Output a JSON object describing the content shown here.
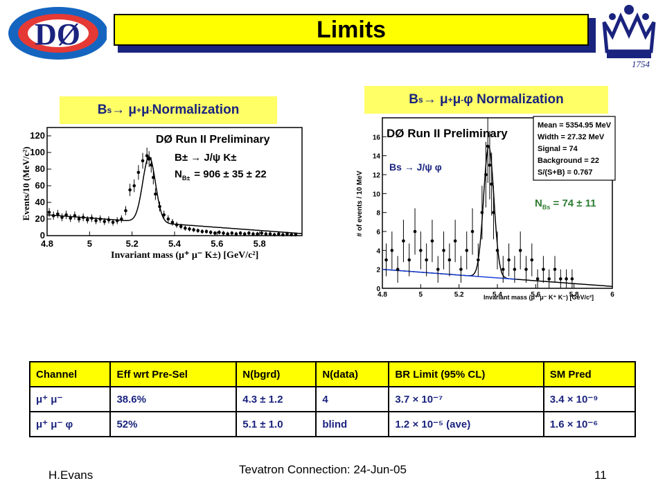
{
  "slide": {
    "title": "Limits",
    "footer_author": "H.Evans",
    "footer_center": "Tevatron Connection: 24-Jun-05",
    "footer_page": "11"
  },
  "logos": {
    "left_text": "DØ",
    "right_text": "1754"
  },
  "left_panel": {
    "heading_main": "B",
    "heading_sub": "s",
    "heading_rest": " → μ",
    "heading_sup1": "+",
    "heading_mid": " μ",
    "heading_sup2": "-",
    "heading_tail": " Normalization",
    "plot_title": "DØ  Run II Preliminary",
    "decay_label": "B± → J/ψ K±",
    "n_label": "N",
    "n_label_sub": "B±",
    "n_value": "= 906 ± 35 ± 22",
    "ylabel": "Events/10 (MeV/c²)",
    "xlabel": "Invariant mass (μ⁺ μ⁻ K±)   [GeV/c²]"
  },
  "right_panel": {
    "heading_main": "B",
    "heading_sub": "s",
    "heading_rest": " → μ",
    "heading_sup1": "+",
    "heading_mid": " μ",
    "heading_sup2": "-",
    "heading_tail": " φ Normalization",
    "plot_title": "DØ Run II Preliminary",
    "decay_label": "Bs → J/ψ φ",
    "n_label": "N",
    "n_label_sub": "Bs",
    "n_value": " = 74 ± 11",
    "ylabel": "# of events / 10 MeV",
    "xlabel": "Invariant mass (μ⁺ μ⁻ K⁺ K⁻)   [GeV/c²]",
    "stats": [
      "Mean = 5354.95 MeV",
      "Width = 27.32 MeV",
      "Signal  =  74",
      "Background =  22",
      "S/(S+B) = 0.767"
    ]
  },
  "table": {
    "headers": [
      "Channel",
      "Eff wrt Pre-Sel",
      "N(bgrd)",
      "N(data)",
      "BR Limit (95% CL)",
      "SM Pred"
    ],
    "rows": [
      [
        "μ⁺ μ⁻",
        "38.6%",
        "4.3 ± 1.2",
        "4",
        "3.7 × 10⁻⁷",
        "3.4 × 10⁻⁹"
      ],
      [
        "μ⁺ μ⁻ φ",
        "52%",
        "5.1 ± 1.0",
        "blind",
        "1.2 × 10⁻⁵ (ave)",
        "1.6 × 10⁻⁶"
      ]
    ]
  },
  "colors": {
    "banner": "#ffff00",
    "heading_box": "#ffff66",
    "heading_text": "#1a237e",
    "n_bs_text": "#2e7d32",
    "bs_label_text": "#1a237e",
    "background_line": "#1a3fd6"
  },
  "chart_data": [
    {
      "type": "scatter",
      "title": "DØ  Run II Preliminary",
      "xlabel": "Invariant mass (μ⁺ μ⁻ K±)   [GeV/c²]",
      "ylabel": "Events/10 (MeV/c²)",
      "xlim": [
        4.8,
        6.0
      ],
      "ylim": [
        0,
        130
      ],
      "x_ticks": [
        4.8,
        5,
        5.2,
        5.4,
        5.6,
        5.8
      ],
      "y_ticks": [
        0,
        20,
        40,
        60,
        80,
        100,
        120
      ],
      "points": [
        [
          4.81,
          28
        ],
        [
          4.83,
          24
        ],
        [
          4.85,
          26
        ],
        [
          4.87,
          22
        ],
        [
          4.89,
          25
        ],
        [
          4.91,
          21
        ],
        [
          4.93,
          24
        ],
        [
          4.95,
          20
        ],
        [
          4.97,
          22
        ],
        [
          4.99,
          19
        ],
        [
          5.01,
          21
        ],
        [
          5.03,
          18
        ],
        [
          5.05,
          20
        ],
        [
          5.07,
          17
        ],
        [
          5.09,
          19
        ],
        [
          5.11,
          16
        ],
        [
          5.13,
          18
        ],
        [
          5.15,
          20
        ],
        [
          5.17,
          30
        ],
        [
          5.19,
          55
        ],
        [
          5.21,
          60
        ],
        [
          5.23,
          76
        ],
        [
          5.25,
          90
        ],
        [
          5.27,
          96
        ],
        [
          5.28,
          92
        ],
        [
          5.29,
          85
        ],
        [
          5.3,
          70
        ],
        [
          5.31,
          50
        ],
        [
          5.33,
          35
        ],
        [
          5.35,
          25
        ],
        [
          5.37,
          20
        ],
        [
          5.39,
          16
        ],
        [
          5.41,
          13
        ],
        [
          5.43,
          11
        ],
        [
          5.45,
          9
        ],
        [
          5.47,
          8
        ],
        [
          5.49,
          7
        ],
        [
          5.51,
          6
        ],
        [
          5.53,
          5
        ],
        [
          5.55,
          5
        ],
        [
          5.57,
          4
        ],
        [
          5.59,
          3
        ],
        [
          5.61,
          4
        ],
        [
          5.63,
          3
        ],
        [
          5.65,
          2
        ],
        [
          5.67,
          3
        ],
        [
          5.69,
          2
        ],
        [
          5.71,
          3
        ],
        [
          5.73,
          2
        ],
        [
          5.75,
          3
        ],
        [
          5.77,
          2
        ],
        [
          5.79,
          2
        ],
        [
          5.81,
          3
        ],
        [
          5.83,
          2
        ],
        [
          5.85,
          2
        ],
        [
          5.87,
          1
        ],
        [
          5.89,
          2
        ],
        [
          5.91,
          1
        ],
        [
          5.93,
          2
        ],
        [
          5.95,
          1
        ],
        [
          5.97,
          1
        ]
      ],
      "fit": {
        "background_at_4_8": 25,
        "peak_x": 5.28,
        "peak_y": 95,
        "width": 0.03
      }
    },
    {
      "type": "scatter",
      "title": "DØ Run II Preliminary",
      "xlabel": "Invariant mass (μ⁺ μ⁻ K⁺ K⁻)   [GeV/c²]",
      "ylabel": "# of events / 10 MeV",
      "xlim": [
        4.8,
        6.0
      ],
      "ylim": [
        0,
        18
      ],
      "x_ticks": [
        4.8,
        5,
        5.2,
        5.4,
        5.6,
        5.8,
        6
      ],
      "y_ticks": [
        0,
        2,
        4,
        6,
        8,
        10,
        12,
        14,
        16
      ],
      "points": [
        [
          4.82,
          3
        ],
        [
          4.85,
          4
        ],
        [
          4.88,
          2
        ],
        [
          4.91,
          5
        ],
        [
          4.94,
          3
        ],
        [
          4.97,
          6
        ],
        [
          5.0,
          4
        ],
        [
          5.03,
          3
        ],
        [
          5.06,
          5
        ],
        [
          5.09,
          2
        ],
        [
          5.12,
          4
        ],
        [
          5.15,
          3
        ],
        [
          5.18,
          5
        ],
        [
          5.21,
          2
        ],
        [
          5.24,
          4
        ],
        [
          5.27,
          6
        ],
        [
          5.3,
          3
        ],
        [
          5.32,
          8
        ],
        [
          5.34,
          12
        ],
        [
          5.35,
          15
        ],
        [
          5.36,
          13
        ],
        [
          5.37,
          11
        ],
        [
          5.38,
          8
        ],
        [
          5.4,
          4
        ],
        [
          5.43,
          2
        ],
        [
          5.46,
          3
        ],
        [
          5.49,
          2
        ],
        [
          5.52,
          4
        ],
        [
          5.55,
          2
        ],
        [
          5.58,
          3
        ],
        [
          5.61,
          1
        ],
        [
          5.64,
          2
        ],
        [
          5.67,
          1
        ],
        [
          5.7,
          2
        ],
        [
          5.73,
          1
        ],
        [
          5.76,
          1
        ],
        [
          5.79,
          1
        ]
      ],
      "fit": {
        "background_at_4_8": 2.0,
        "peak_x": 5.355,
        "peak_y": 15,
        "width": 0.027
      }
    }
  ]
}
